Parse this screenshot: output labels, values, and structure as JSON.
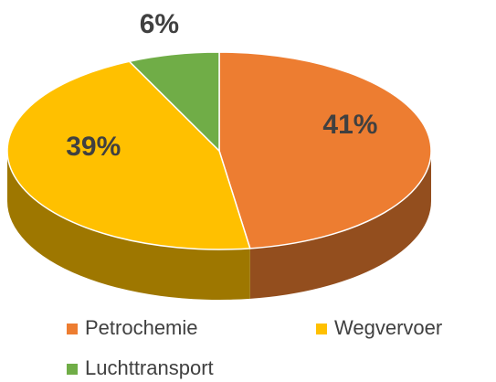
{
  "chart_data": {
    "type": "pie",
    "categories": [
      "Petrochemie",
      "Wegvervoer",
      "Luchttransport"
    ],
    "values": [
      41,
      39,
      6
    ],
    "value_labels": [
      "41%",
      "39%",
      "6%"
    ],
    "colors": [
      "#ed7d31",
      "#ffc000",
      "#70ad47"
    ],
    "legend": "bottom"
  }
}
